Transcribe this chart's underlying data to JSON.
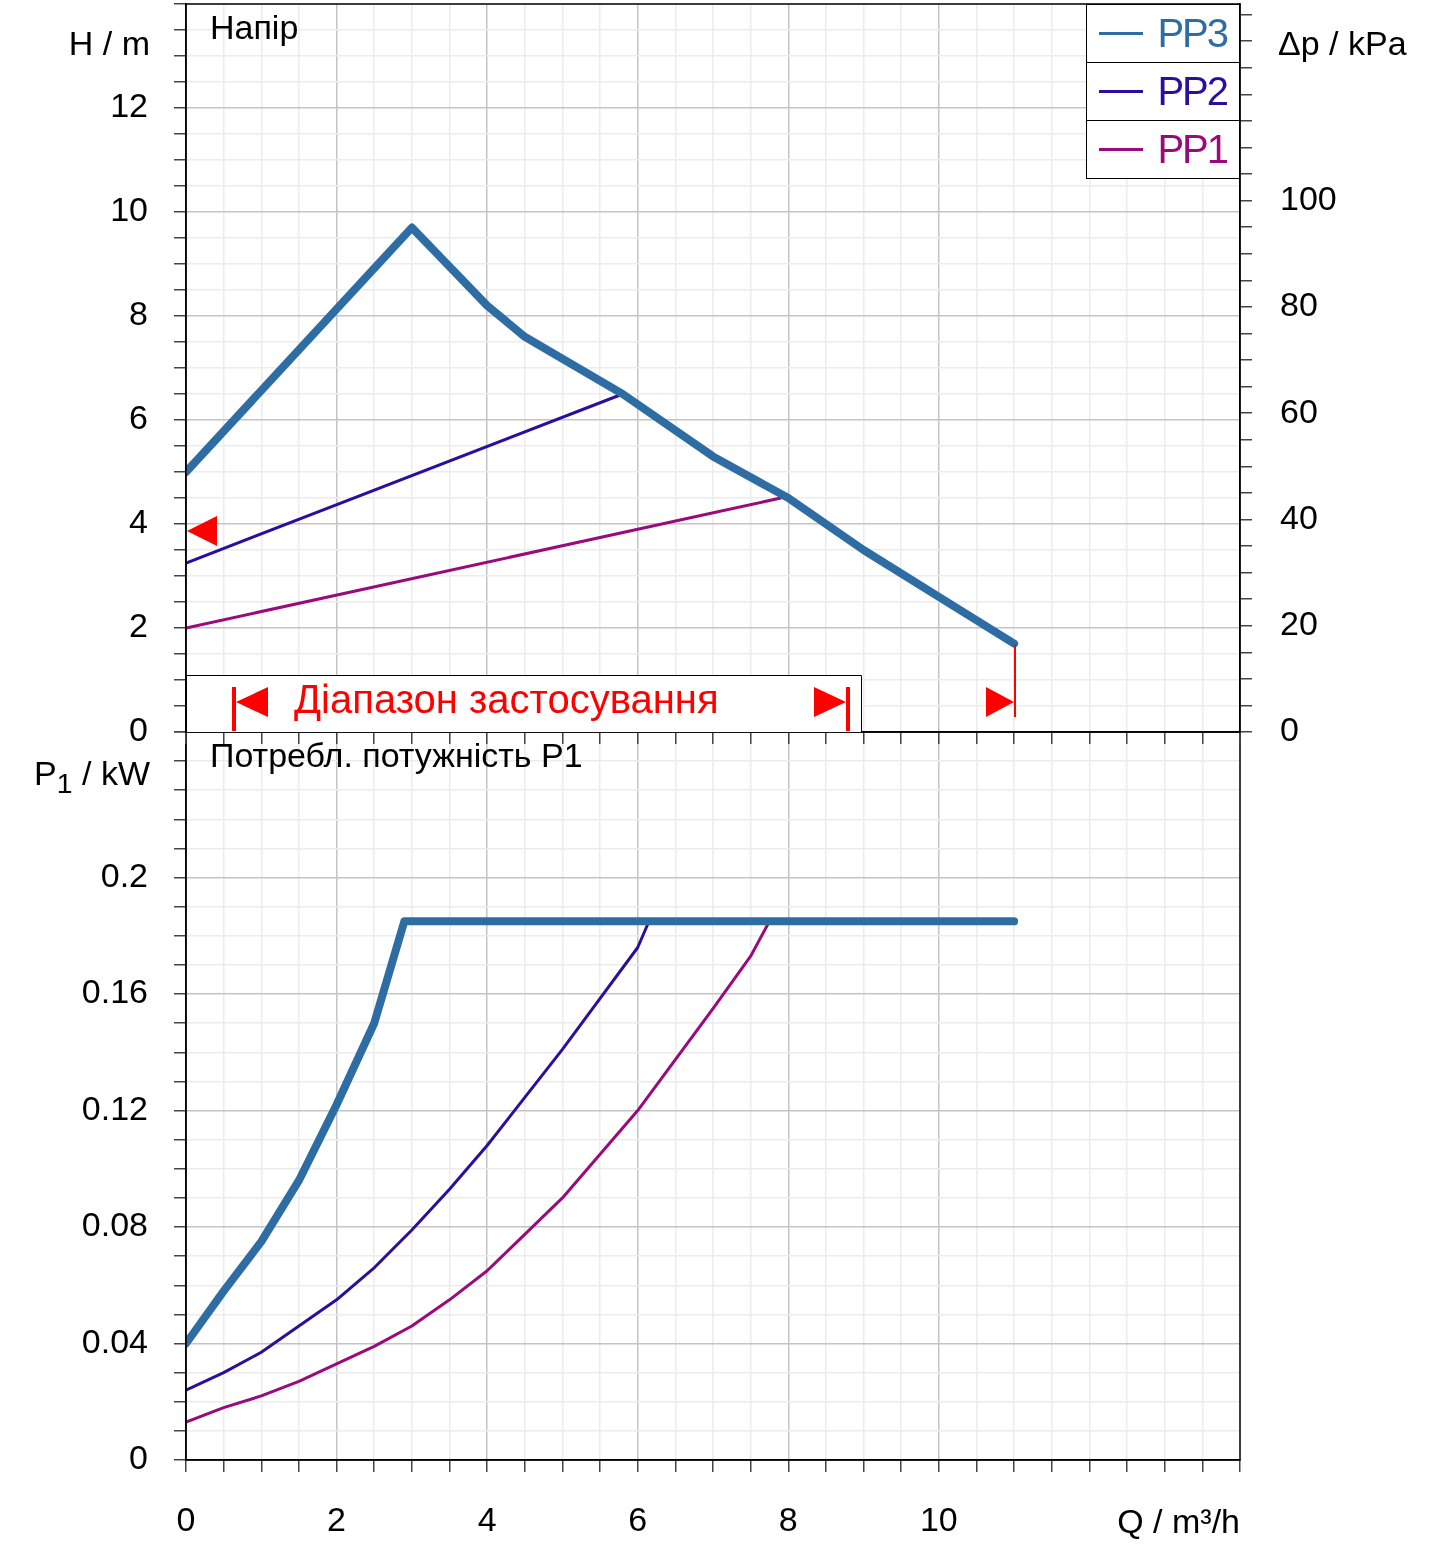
{
  "chart_data": [
    {
      "type": "line",
      "title": "Напір",
      "ylabel": "H / m",
      "y2label": "Δp / kPa",
      "annotations": [
        "Діапазон застосування"
      ],
      "legend": "top right",
      "marker": "none",
      "grid": true,
      "tick_labels": "y",
      "xlim": [
        0,
        14
      ],
      "ylim": [
        0,
        14
      ],
      "y2lim": [
        0,
        137
      ],
      "xticks": [
        0,
        {
          "value": 0.5,
          "label": null
        },
        {
          "value": 1,
          "label": null
        },
        {
          "value": 1.5,
          "label": null
        },
        2,
        {
          "value": 2.5,
          "label": null
        },
        {
          "value": 3,
          "label": null
        },
        {
          "value": 3.5,
          "label": null
        },
        4,
        {
          "value": 4.5,
          "label": null
        },
        {
          "value": 5,
          "label": null
        },
        {
          "value": 5.5,
          "label": null
        },
        6,
        {
          "value": 6.5,
          "label": null
        },
        {
          "value": 7,
          "label": null
        },
        {
          "value": 7.5,
          "label": null
        },
        8,
        {
          "value": 8.5,
          "label": null
        },
        {
          "value": 9,
          "label": null
        },
        {
          "value": 9.5,
          "label": null
        },
        10,
        {
          "value": 10.5,
          "label": null
        },
        {
          "value": 11,
          "label": null
        },
        {
          "value": 11.5,
          "label": null
        },
        {
          "value": 12,
          "label": null
        },
        {
          "value": 12.5,
          "label": null
        },
        {
          "value": 13,
          "label": null
        },
        {
          "value": 13.5,
          "label": null
        },
        {
          "value": 14,
          "label": null
        }
      ],
      "yticks": [
        0,
        {
          "value": 0.5,
          "label": null
        },
        {
          "value": 1,
          "label": null
        },
        {
          "value": 1.5,
          "label": null
        },
        2,
        {
          "value": 2.5,
          "label": null
        },
        {
          "value": 3,
          "label": null
        },
        {
          "value": 3.5,
          "label": null
        },
        4,
        {
          "value": 4.5,
          "label": null
        },
        {
          "value": 5,
          "label": null
        },
        {
          "value": 5.5,
          "label": null
        },
        6,
        {
          "value": 6.5,
          "label": null
        },
        {
          "value": 7,
          "label": null
        },
        {
          "value": 7.5,
          "label": null
        },
        8,
        {
          "value": 8.5,
          "label": null
        },
        {
          "value": 9,
          "label": null
        },
        {
          "value": 9.5,
          "label": null
        },
        10,
        {
          "value": 10.5,
          "label": null
        },
        {
          "value": 11,
          "label": null
        },
        {
          "value": 11.5,
          "label": null
        },
        12,
        {
          "value": 12.5,
          "label": null
        },
        {
          "value": 13,
          "label": null
        },
        {
          "value": 13.5,
          "label": null
        },
        {
          "value": 14,
          "label": null
        }
      ],
      "y2ticks": [
        0,
        {
          "value": 5,
          "label": null
        },
        {
          "value": 10,
          "label": null
        },
        {
          "value": 15,
          "label": null
        },
        20,
        {
          "value": 25,
          "label": null
        },
        {
          "value": 30,
          "label": null
        },
        {
          "value": 35,
          "label": null
        },
        40,
        {
          "value": 45,
          "label": null
        },
        {
          "value": 50,
          "label": null
        },
        {
          "value": 55,
          "label": null
        },
        60,
        {
          "value": 65,
          "label": null
        },
        {
          "value": 70,
          "label": null
        },
        {
          "value": 75,
          "label": null
        },
        80,
        {
          "value": 85,
          "label": null
        },
        {
          "value": 90,
          "label": null
        },
        {
          "value": 95,
          "label": null
        },
        100,
        {
          "value": 105,
          "label": null
        },
        {
          "value": 110,
          "label": null
        },
        {
          "value": 115,
          "label": null
        },
        {
          "value": 120,
          "label": null
        },
        {
          "value": 125,
          "label": null
        },
        {
          "value": 130,
          "label": null
        },
        {
          "value": 135,
          "label": null
        }
      ],
      "series": [
        {
          "name": "PP3",
          "color": "#2e6da4",
          "x": [
            0,
            3,
            4,
            4.5,
            5.8,
            7,
            8,
            9,
            10,
            11
          ],
          "values": [
            5.0,
            9.7,
            8.2,
            7.6,
            6.5,
            5.3,
            4.5,
            3.5,
            2.6,
            1.7
          ]
        },
        {
          "name": "PP2",
          "color": "#2a0f9e",
          "x": [
            0,
            5.8
          ],
          "values": [
            3.25,
            6.5
          ]
        },
        {
          "name": "PP1",
          "color": "#9a0a7a",
          "x": [
            0,
            7.9
          ],
          "values": [
            2.0,
            4.5
          ]
        }
      ]
    },
    {
      "type": "line",
      "title": "Потребл. потужність P1",
      "ylabel": "P$_{1}$ / kW",
      "xlabel": "Q / m³/h",
      "legend": false,
      "marker": "none",
      "grid": true,
      "xlim": [
        0,
        14
      ],
      "ylim": [
        0,
        0.25
      ],
      "xticks": [
        0,
        {
          "value": 0.5,
          "label": null
        },
        {
          "value": 1,
          "label": null
        },
        {
          "value": 1.5,
          "label": null
        },
        2,
        {
          "value": 2.5,
          "label": null
        },
        {
          "value": 3,
          "label": null
        },
        {
          "value": 3.5,
          "label": null
        },
        4,
        {
          "value": 4.5,
          "label": null
        },
        {
          "value": 5,
          "label": null
        },
        {
          "value": 5.5,
          "label": null
        },
        6,
        {
          "value": 6.5,
          "label": null
        },
        {
          "value": 7,
          "label": null
        },
        {
          "value": 7.5,
          "label": null
        },
        8,
        {
          "value": 8.5,
          "label": null
        },
        {
          "value": 9,
          "label": null
        },
        {
          "value": 9.5,
          "label": null
        },
        10,
        {
          "value": 10.5,
          "label": null
        },
        {
          "value": 11,
          "label": null
        },
        {
          "value": 11.5,
          "label": null
        },
        {
          "value": 12,
          "label": null
        },
        {
          "value": 12.5,
          "label": null
        },
        {
          "value": 13,
          "label": null
        },
        {
          "value": 13.5,
          "label": null
        },
        {
          "value": 14,
          "label": null
        }
      ],
      "yticks": [
        0,
        {
          "value": 0.01,
          "label": null
        },
        {
          "value": 0.02,
          "label": null
        },
        {
          "value": 0.03,
          "label": null
        },
        0.04,
        {
          "value": 0.05,
          "label": null
        },
        {
          "value": 0.06,
          "label": null
        },
        {
          "value": 0.07,
          "label": null
        },
        0.08,
        {
          "value": 0.09,
          "label": null
        },
        {
          "value": 0.1,
          "label": null
        },
        {
          "value": 0.11,
          "label": null
        },
        0.12,
        {
          "value": 0.13,
          "label": null
        },
        {
          "value": 0.14,
          "label": null
        },
        {
          "value": 0.15,
          "label": null
        },
        0.16,
        {
          "value": 0.17,
          "label": null
        },
        {
          "value": 0.18,
          "label": null
        },
        {
          "value": 0.19,
          "label": null
        },
        0.2,
        {
          "value": 0.21,
          "label": null
        },
        {
          "value": 0.22,
          "label": null
        },
        {
          "value": 0.23,
          "label": null
        },
        {
          "value": 0.24,
          "label": null
        },
        {
          "value": 0.25,
          "label": null
        }
      ],
      "series": [
        {
          "color": "#2e6da4",
          "x": [
            0,
            0.5,
            1,
            1.5,
            2,
            2.5,
            2.9,
            11
          ],
          "values": [
            0.04,
            0.058,
            0.075,
            0.096,
            0.122,
            0.15,
            0.185,
            0.185
          ]
        },
        {
          "color": "#2a0f9e",
          "x": [
            0,
            0.5,
            1,
            1.5,
            2,
            2.5,
            3,
            3.5,
            4,
            5,
            6,
            6.15
          ],
          "values": [
            0.024,
            0.03,
            0.037,
            0.046,
            0.055,
            0.066,
            0.079,
            0.093,
            0.108,
            0.141,
            0.176,
            0.185
          ]
        },
        {
          "color": "#9a0a7a",
          "x": [
            0,
            0.5,
            1,
            1.5,
            2,
            2.5,
            3,
            3.5,
            4,
            5,
            6,
            7,
            7.5,
            7.75
          ],
          "values": [
            0.013,
            0.018,
            0.022,
            0.027,
            0.033,
            0.039,
            0.046,
            0.055,
            0.065,
            0.09,
            0.12,
            0.155,
            0.173,
            0.185
          ]
        }
      ]
    }
  ]
}
